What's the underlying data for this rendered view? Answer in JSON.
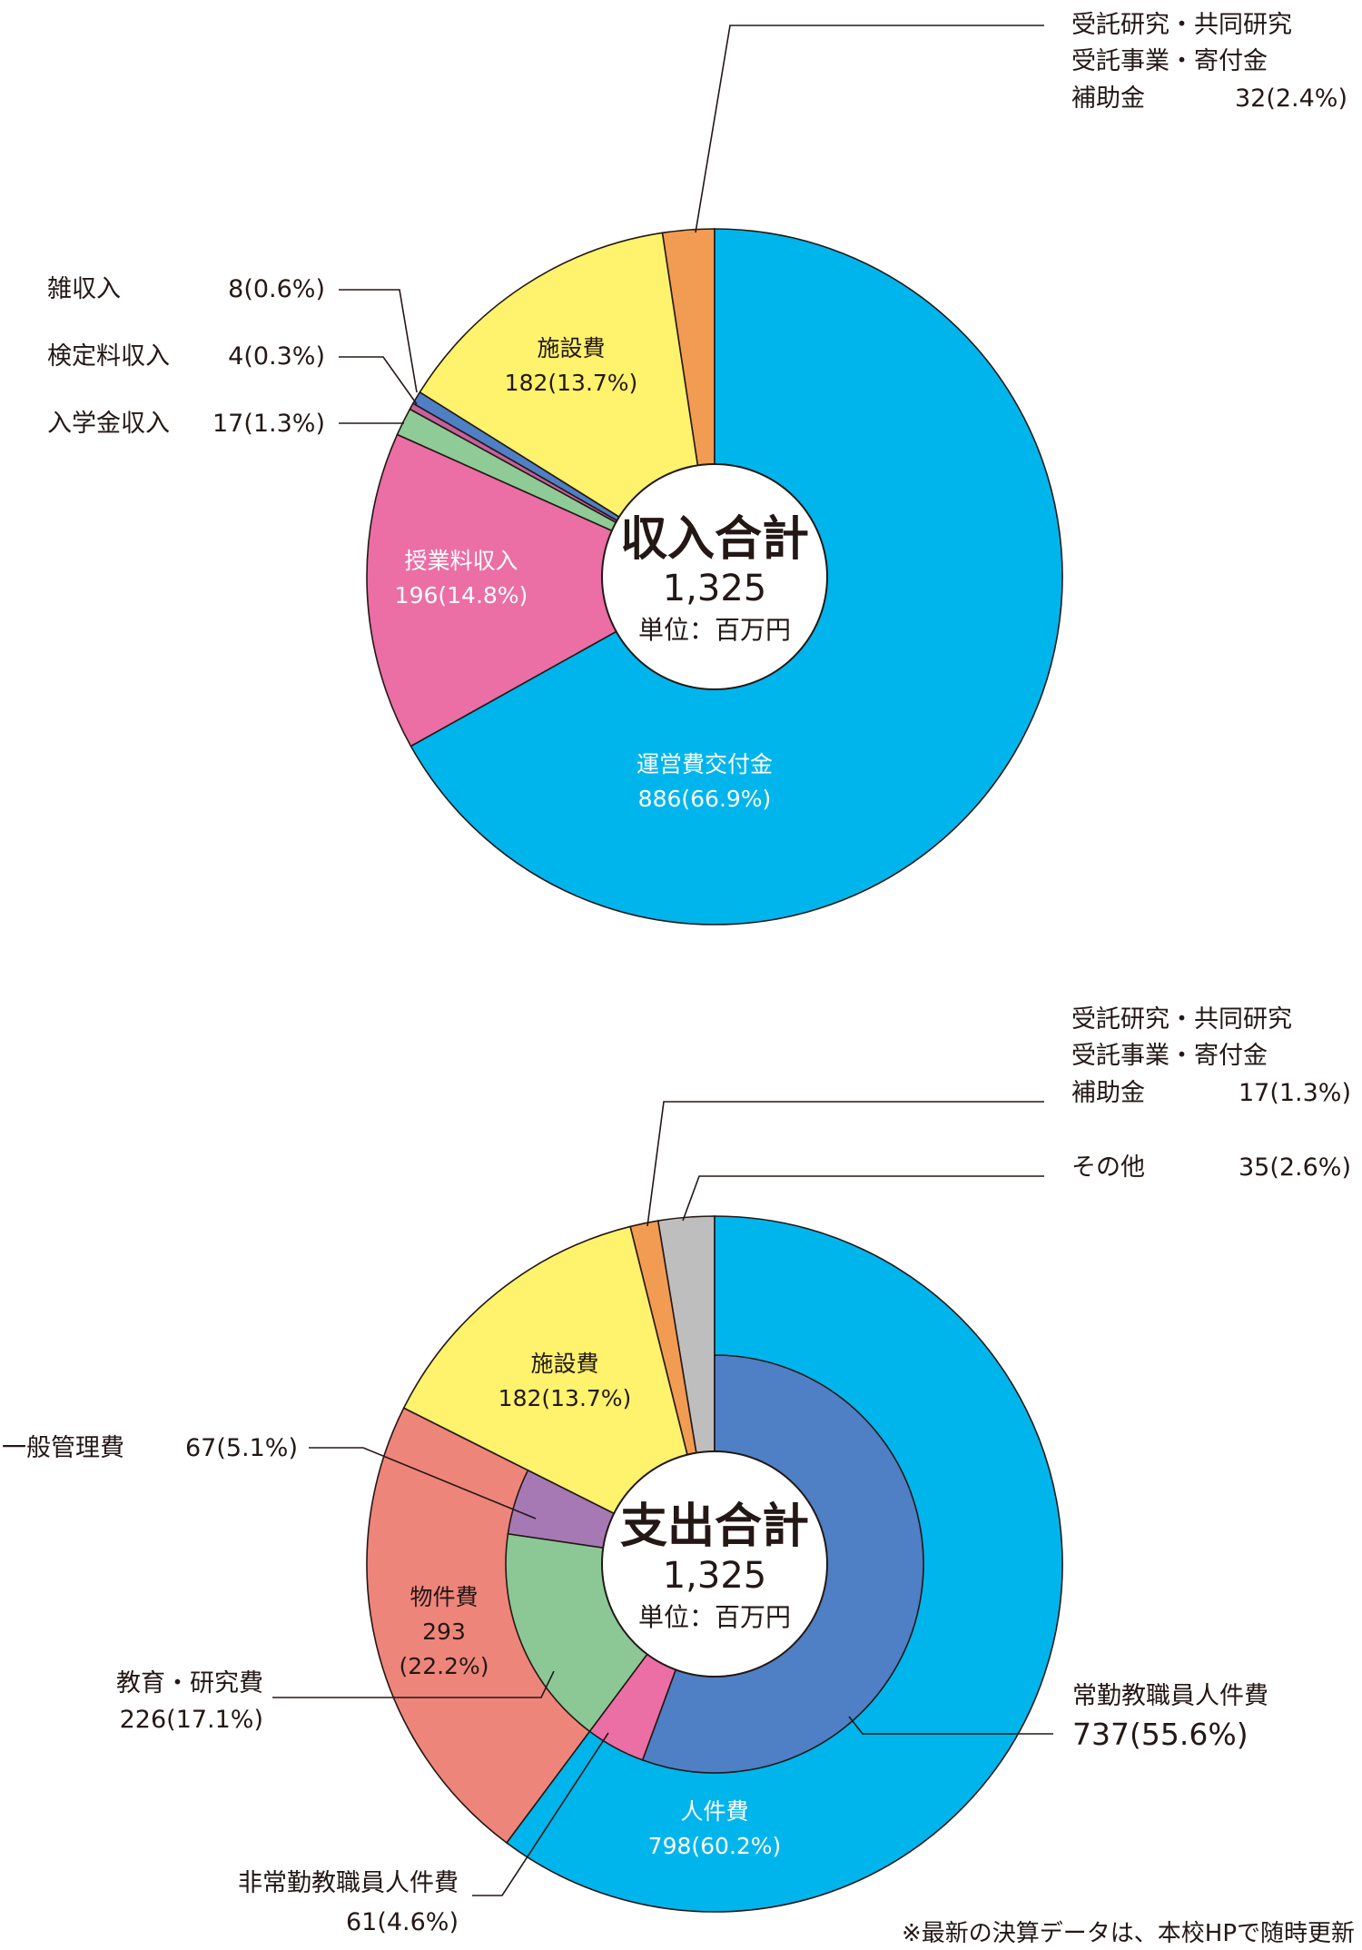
{
  "charts": {
    "income": {
      "center_title": "収入合計",
      "center_total": "1,325",
      "center_unit": "単位：百万円"
    },
    "expense": {
      "center_title": "支出合計",
      "center_total": "1,325",
      "center_unit": "単位：百万円"
    }
  },
  "colors": {
    "cyan": "#00B5EC",
    "pink": "#EB6EA5",
    "green": "#8FCB96",
    "purple_pink": "#C7619E",
    "blue": "#4F7FC4",
    "yellow": "#FFF26C",
    "orange": "#F29B52",
    "salmon": "#EE857A",
    "violet": "#A679B5",
    "mint": "#8CC896",
    "gray": "#BEBEBE",
    "ink": "#231815"
  },
  "chart_data": [
    {
      "type": "pie",
      "title": "収入合計",
      "total": 1325,
      "unit": "単位：百万円",
      "slices": [
        {
          "label": "受託研究・共同研究\n受託事業・寄付金\n補助金",
          "value": 32,
          "percent": 2.4,
          "color": "#F29B52"
        },
        {
          "label": "施設費",
          "value": 182,
          "percent": 13.7,
          "color": "#FFF26C"
        },
        {
          "label": "雑収入",
          "value": 8,
          "percent": 0.6,
          "color": "#4F7FC4"
        },
        {
          "label": "検定料収入",
          "value": 4,
          "percent": 0.3,
          "color": "#C7619E"
        },
        {
          "label": "入学金収入",
          "value": 17,
          "percent": 1.3,
          "color": "#8FCB96"
        },
        {
          "label": "授業料収入",
          "value": 196,
          "percent": 14.8,
          "color": "#EB6EA5"
        },
        {
          "label": "運営費交付金",
          "value": 886,
          "percent": 66.9,
          "color": "#00B5EC"
        }
      ]
    },
    {
      "type": "pie",
      "title": "支出合計",
      "total": 1325,
      "unit": "単位：百万円",
      "slices": [
        {
          "label": "その他",
          "value": 35,
          "percent": 2.6,
          "color": "#BEBEBE"
        },
        {
          "label": "受託研究・共同研究\n受託事業・寄付金\n補助金",
          "value": 17,
          "percent": 1.3,
          "color": "#F29B52"
        },
        {
          "label": "施設費",
          "value": 182,
          "percent": 13.7,
          "color": "#FFF26C"
        },
        {
          "label": "物件費",
          "value": 293,
          "percent": 22.2,
          "color": "#EE857A",
          "children": [
            {
              "label": "一般管理費",
              "value": 67,
              "percent": 5.1,
              "color": "#A679B5"
            },
            {
              "label": "教育・研究費",
              "value": 226,
              "percent": 17.1,
              "color": "#8CC896"
            }
          ]
        },
        {
          "label": "人件費",
          "value": 798,
          "percent": 60.2,
          "color": "#00B5EC",
          "children": [
            {
              "label": "非常勤教職員人件費",
              "value": 61,
              "percent": 4.6,
              "color": "#EB6EA5"
            },
            {
              "label": "常勤教職員人件費",
              "value": 737,
              "percent": 55.6,
              "color": "#4F7FC4"
            }
          ]
        }
      ]
    }
  ],
  "labels": {
    "income_jutaku_l1": "受託研究・共同研究",
    "income_jutaku_l2": "受託事業・寄付金",
    "income_jutaku_l3": "補助金",
    "income_jutaku_val": "32(2.4%)",
    "income_shisetsu_name": "施設費",
    "income_shisetsu_val": "182(13.7%)",
    "income_zatsu_name": "雑収入",
    "income_zatsu_val": "8(0.6%)",
    "income_kentei_name": "検定料収入",
    "income_kentei_val": "4(0.3%)",
    "income_nyugaku_name": "入学金収入",
    "income_nyugaku_val": "17(1.3%)",
    "income_jugyo_name": "授業料収入",
    "income_jugyo_val": "196(14.8%)",
    "income_unei_name": "運営費交付金",
    "income_unei_val": "886(66.9%)",
    "exp_jutaku_l1": "受託研究・共同研究",
    "exp_jutaku_l2": "受託事業・寄付金",
    "exp_jutaku_l3": "補助金",
    "exp_jutaku_val": "17(1.3%)",
    "exp_sonota_name": "その他",
    "exp_sonota_val": "35(2.6%)",
    "exp_shisetsu_name": "施設費",
    "exp_shisetsu_val": "182(13.7%)",
    "exp_ippan_name": "一般管理費",
    "exp_ippan_val": "67(5.1%)",
    "exp_bukken_name": "物件費",
    "exp_bukken_val": "293",
    "exp_bukken_pct": "(22.2%)",
    "exp_kyoiku_name": "教育・研究費",
    "exp_kyoiku_val": "226(17.1%)",
    "exp_jouki_name": "常勤教職員人件費",
    "exp_jouki_val": "737(55.6%)",
    "exp_jinken_name": "人件費",
    "exp_jinken_val": "798(60.2%)",
    "exp_hijoukin_name": "非常勤教職員人件費",
    "exp_hijoukin_val": "61(4.6%)"
  },
  "footnote": "※最新の決算データは、本校HPで随時更新"
}
